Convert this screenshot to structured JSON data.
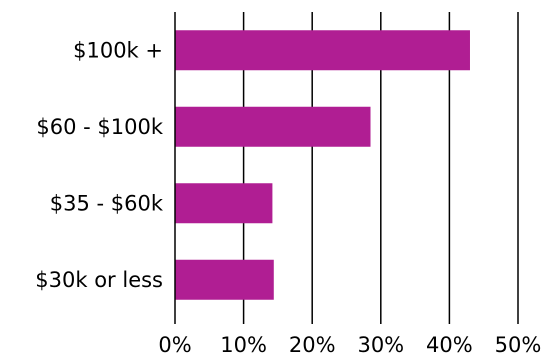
{
  "chart_data": {
    "type": "bar",
    "orientation": "horizontal",
    "categories": [
      "$100k +",
      "$60 - $100k",
      "$35 - $60k",
      "$30k or less"
    ],
    "values": [
      43,
      28.5,
      14.2,
      14.4
    ],
    "xlim": [
      0,
      50
    ],
    "x_ticks": [
      "0%",
      "10%",
      "20%",
      "30%",
      "40%",
      "50%"
    ],
    "grid": "vertical",
    "bar_color": "#b01e93"
  }
}
